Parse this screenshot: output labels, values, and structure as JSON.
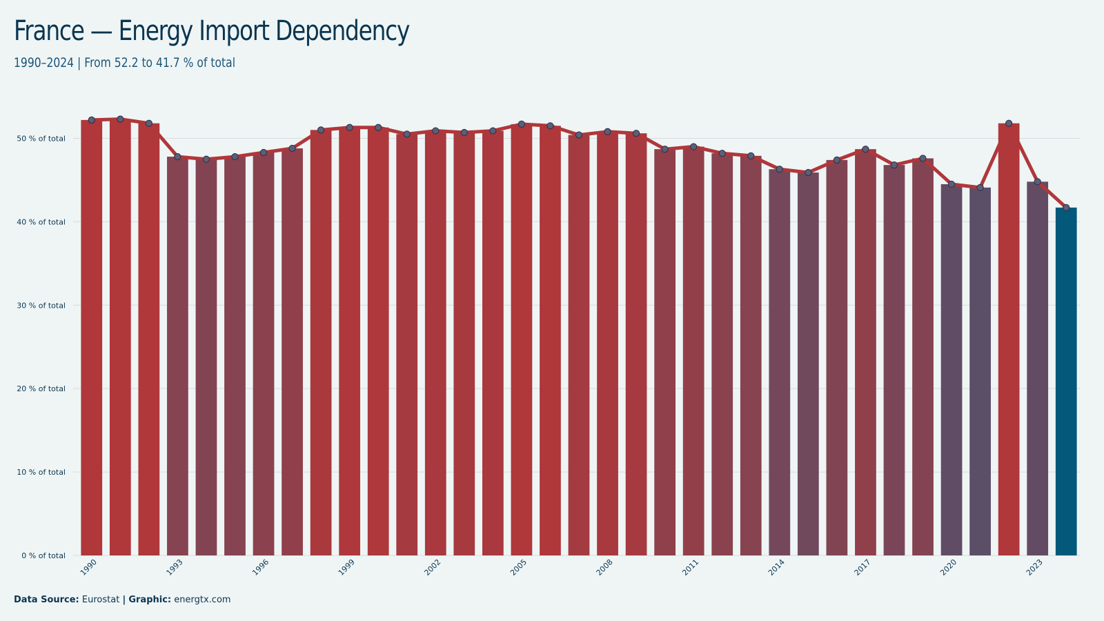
{
  "header": {
    "title": "France — Energy Import Dependency",
    "subtitle": "1990–2024 | From 52.2 to 41.7 % of total"
  },
  "footer": {
    "source_label": "Data Source:",
    "source_value": "Eurostat",
    "separator": "|",
    "graphic_label": "Graphic:",
    "graphic_value": "energtx.com"
  },
  "colors": {
    "background": "#eff5f5",
    "line": "#b0373a",
    "bar_high": "#b0373a",
    "bar_low": "#5a4f68",
    "bar_latest": "#04587a",
    "point_fill": "#5b5f78",
    "grid": "#d7dddf",
    "text": "#0b3550"
  },
  "chart_data": {
    "type": "bar",
    "overlay": "line",
    "title": "France — Energy Import Dependency",
    "subtitle": "1990–2024 | From 52.2 to 41.7 % of total",
    "xlabel": "",
    "ylabel": "",
    "y_unit_suffix": " % of total",
    "ylim": [
      0,
      55
    ],
    "yticks": [
      0,
      10,
      20,
      30,
      40,
      50
    ],
    "grid": true,
    "x_tick_labels": [
      "1990",
      "1993",
      "1996",
      "1999",
      "2002",
      "2005",
      "2008",
      "2011",
      "2014",
      "2017",
      "2020",
      "2023"
    ],
    "categories": [
      "1990",
      "1991",
      "1992",
      "1993",
      "1994",
      "1995",
      "1996",
      "1997",
      "1998",
      "1999",
      "2000",
      "2001",
      "2002",
      "2003",
      "2004",
      "2005",
      "2006",
      "2007",
      "2008",
      "2009",
      "2010",
      "2011",
      "2012",
      "2013",
      "2014",
      "2015",
      "2016",
      "2017",
      "2018",
      "2019",
      "2020",
      "2021",
      "2022",
      "2023",
      "2024"
    ],
    "values": [
      52.2,
      52.3,
      51.8,
      47.8,
      47.5,
      47.8,
      48.3,
      48.8,
      51.0,
      51.3,
      51.3,
      50.5,
      50.9,
      50.7,
      50.9,
      51.7,
      51.5,
      50.4,
      50.8,
      50.6,
      48.7,
      49.0,
      48.2,
      47.9,
      46.3,
      45.9,
      47.4,
      48.7,
      46.8,
      47.6,
      44.5,
      44.1,
      51.8,
      44.8,
      41.7
    ]
  }
}
